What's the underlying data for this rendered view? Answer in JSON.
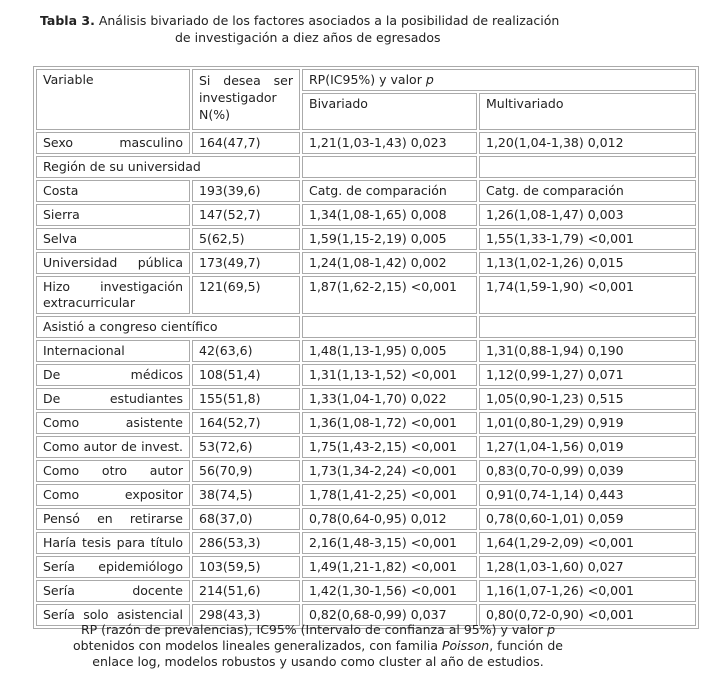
{
  "title": {
    "label": "Tabla 3.",
    "lines": [
      "Análisis bivariado de los factores asociados a la posibilidad de realización",
      "de investigación a diez años de egresados"
    ]
  },
  "table": {
    "header": {
      "variable": "Variable",
      "n": "Si desea ser investigador N(%)",
      "rp": [
        "RP(IC95%) y valor ",
        "p"
      ],
      "bivariado": "Bivariado",
      "multivariado": "Multivariado"
    },
    "rows": [
      [
        "Sexo masculino",
        "164(47,7)",
        "1,21(1,03-1,43) 0,023",
        "1,20(1,04-1,38) 0,012"
      ],
      [
        "Región de su universidad"
      ],
      [
        "Costa",
        "193(39,6)",
        "Catg. de comparación",
        "Catg. de comparación"
      ],
      [
        "Sierra",
        "147(52,7)",
        "1,34(1,08-1,65) 0,008",
        "1,26(1,08-1,47) 0,003"
      ],
      [
        "Selva",
        "5(62,5)",
        "1,59(1,15-2,19) 0,005",
        "1,55(1,33-1,79) <0,001"
      ],
      [
        "Universidad pública",
        "173(49,7)",
        "1,24(1,08-1,42) 0,002",
        "1,13(1,02-1,26) 0,015"
      ],
      [
        "Hizo investigación extracurricular",
        "121(69,5)",
        "1,87(1,62-2,15) <0,001",
        "1,74(1,59-1,90) <0,001"
      ],
      [
        "Asistió a congreso científico"
      ],
      [
        "Internacional",
        "42(63,6)",
        "1,48(1,13-1,95) 0,005",
        "1,31(0,88-1,94) 0,190"
      ],
      [
        "De médicos",
        "108(51,4)",
        "1,31(1,13-1,52) <0,001",
        "1,12(0,99-1,27) 0,071"
      ],
      [
        "De estudiantes",
        "155(51,8)",
        "1,33(1,04-1,70) 0,022",
        "1,05(0,90-1,23) 0,515"
      ],
      [
        "Como asistente",
        "164(52,7)",
        "1,36(1,08-1,72) <0,001",
        "1,01(0,80-1,29) 0,919"
      ],
      [
        "Como autor de invest.",
        "53(72,6)",
        "1,75(1,43-2,15) <0,001",
        "1,27(1,04-1,56) 0,019"
      ],
      [
        "Como otro autor",
        "56(70,9)",
        "1,73(1,34-2,24) <0,001",
        "0,83(0,70-0,99) 0,039"
      ],
      [
        "Como expositor",
        "38(74,5)",
        "1,78(1,41-2,25) <0,001",
        "0,91(0,74-1,14) 0,443"
      ],
      [
        "Pensó en retirarse",
        "68(37,0)",
        "0,78(0,64-0,95) 0,012",
        "0,78(0,60-1,01) 0,059"
      ],
      [
        "Haría tesis para título",
        "286(53,3)",
        "2,16(1,48-3,15) <0,001",
        "1,64(1,29-2,09) <0,001"
      ],
      [
        "Sería epidemiólogo",
        "103(59,5)",
        "1,49(1,21-1,82) <0,001",
        "1,28(1,03-1,60) 0,027"
      ],
      [
        "Sería docente",
        "214(51,6)",
        "1,42(1,30-1,56) <0,001",
        "1,16(1,07-1,26) <0,001"
      ],
      [
        "Sería solo asistencial",
        "298(43,3)",
        "0,82(0,68-0,99) 0,037",
        "0,80(0,72-0,90) <0,001"
      ]
    ]
  },
  "footnote": {
    "lines": [
      [
        "RP (razón de prevalencias), IC95% (Intervalo de confianza al 95%) y valor ",
        "p"
      ],
      [
        "obtenidos con modelos lineales generalizados, con familia ",
        "Poisson",
        ", función de"
      ],
      [
        "enlace log, modelos robustos y usando como cluster al año de estudios."
      ]
    ]
  }
}
